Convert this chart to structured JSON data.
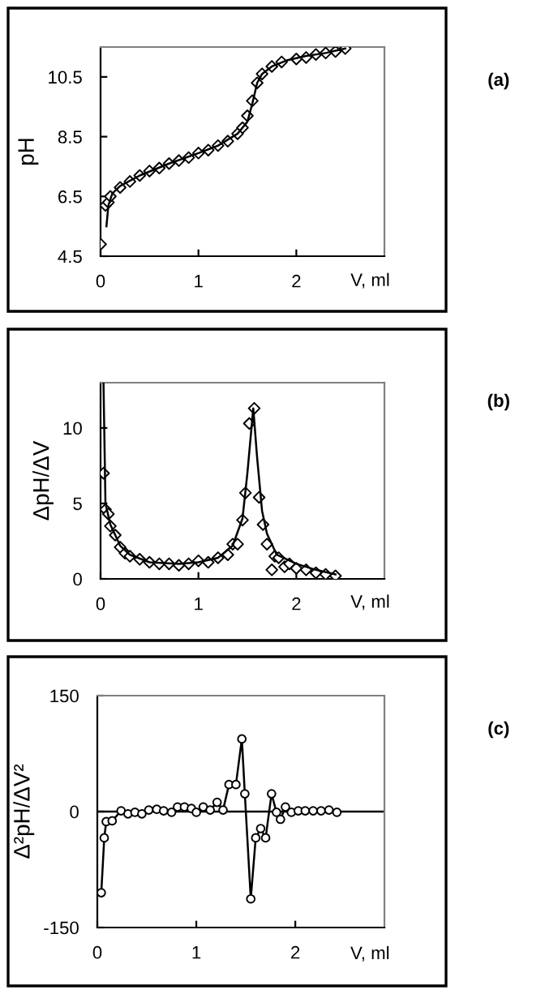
{
  "chart_data": [
    {
      "type": "scatter",
      "ylabel": "pH",
      "xlabel": "V, ml",
      "annotations": [
        "(a)"
      ],
      "xlim": [
        0,
        2.9
      ],
      "xticks": [
        0,
        1,
        2
      ],
      "ylim": [
        4.5,
        11.5
      ],
      "yticks": [
        4.5,
        6.5,
        8.5,
        10.5
      ],
      "grid": false,
      "legend": false,
      "series": [
        {
          "marker": "diamond",
          "color": "#000000",
          "x": [
            0,
            0.05,
            0.08,
            0.1,
            0.2,
            0.3,
            0.4,
            0.5,
            0.6,
            0.7,
            0.8,
            0.9,
            1.0,
            1.1,
            1.2,
            1.3,
            1.4,
            1.45,
            1.5,
            1.55,
            1.6,
            1.65,
            1.75,
            1.85,
            2.0,
            2.1,
            2.2,
            2.3,
            2.4,
            2.5
          ],
          "values": [
            4.9,
            6.2,
            6.3,
            6.5,
            6.8,
            7.0,
            7.2,
            7.35,
            7.45,
            7.6,
            7.7,
            7.8,
            7.95,
            8.05,
            8.2,
            8.35,
            8.6,
            8.8,
            9.2,
            9.7,
            10.3,
            10.6,
            10.85,
            11.0,
            11.1,
            11.15,
            11.25,
            11.3,
            11.35,
            11.45
          ]
        },
        {
          "type": "line",
          "marker": "none",
          "color": "#000000",
          "x": [
            0.06,
            0.08,
            0.12,
            0.2,
            0.4,
            0.7,
            1.0,
            1.2,
            1.4,
            1.5,
            1.55,
            1.6,
            1.65,
            1.75,
            1.9,
            2.1,
            2.3,
            2.5
          ],
          "values": [
            5.5,
            6.2,
            6.6,
            6.85,
            7.2,
            7.6,
            7.95,
            8.2,
            8.6,
            9.0,
            9.6,
            10.3,
            10.6,
            10.85,
            11.05,
            11.2,
            11.3,
            11.45
          ]
        }
      ]
    },
    {
      "type": "scatter",
      "ylabel": "ΔpH/ΔV",
      "xlabel": "V, ml",
      "annotations": [
        "(b)"
      ],
      "xlim": [
        0,
        2.9
      ],
      "xticks": [
        0,
        1,
        2
      ],
      "ylim": [
        0,
        13
      ],
      "yticks": [
        0,
        5,
        10
      ],
      "grid": false,
      "legend": false,
      "series": [
        {
          "marker": "diamond",
          "color": "#000000",
          "x": [
            0.03,
            0.05,
            0.08,
            0.1,
            0.15,
            0.2,
            0.25,
            0.3,
            0.4,
            0.5,
            0.6,
            0.7,
            0.8,
            0.9,
            1.0,
            1.1,
            1.2,
            1.3,
            1.35,
            1.4,
            1.45,
            1.48,
            1.52,
            1.57,
            1.62,
            1.66,
            1.7,
            1.75,
            1.78,
            1.82,
            1.88,
            1.93,
            2.0,
            2.1,
            2.2,
            2.3,
            2.4
          ],
          "values": [
            7.0,
            4.6,
            4.3,
            3.5,
            2.9,
            2.1,
            1.7,
            1.5,
            1.3,
            1.1,
            1.0,
            1.0,
            0.9,
            1.0,
            1.2,
            1.1,
            1.4,
            1.6,
            2.3,
            2.3,
            3.9,
            5.7,
            10.3,
            11.3,
            5.4,
            3.6,
            2.3,
            0.6,
            1.5,
            1.4,
            0.8,
            1.0,
            0.7,
            0.6,
            0.4,
            0.3,
            0.2
          ]
        },
        {
          "type": "line",
          "marker": "none",
          "color": "#000000",
          "x": [
            0.03,
            0.05,
            0.1,
            0.2,
            0.3,
            0.5,
            0.8,
            1.0,
            1.2,
            1.35,
            1.45,
            1.5,
            1.56,
            1.6,
            1.65,
            1.7,
            1.8,
            2.0,
            2.2,
            2.4
          ],
          "values": [
            13,
            5,
            3.6,
            2.2,
            1.6,
            1.1,
            1.0,
            1.1,
            1.4,
            2.2,
            4.0,
            7,
            11.3,
            8,
            4.5,
            3,
            1.6,
            1.0,
            0.6,
            0.3
          ]
        }
      ]
    },
    {
      "type": "line",
      "ylabel": "Δ²pH/ΔV²",
      "xlabel": "V, ml",
      "annotations": [
        "(c)"
      ],
      "xlim": [
        0,
        2.9
      ],
      "xticks": [
        0,
        1,
        2
      ],
      "ylim": [
        -150,
        150
      ],
      "yticks": [
        -150,
        0,
        150
      ],
      "grid": false,
      "legend": false,
      "ref_lines": [
        {
          "axis": "y",
          "value": 0,
          "label": null,
          "color": "#000000"
        }
      ],
      "series": [
        {
          "marker": "circle",
          "color": "#000000",
          "x": [
            0.04,
            0.07,
            0.09,
            0.15,
            0.24,
            0.31,
            0.38,
            0.45,
            0.52,
            0.6,
            0.67,
            0.75,
            0.81,
            0.88,
            0.95,
            1.0,
            1.07,
            1.14,
            1.21,
            1.27,
            1.33,
            1.4,
            1.46,
            1.49,
            1.55,
            1.6,
            1.65,
            1.7,
            1.76,
            1.81,
            1.85,
            1.9,
            1.96,
            2.03,
            2.1,
            2.18,
            2.26,
            2.34,
            2.42
          ],
          "values": [
            -105,
            -34,
            -13,
            -12,
            1,
            -3,
            -1,
            -3,
            2,
            3,
            1,
            -1,
            6,
            6,
            4,
            -1,
            6,
            2,
            12,
            2,
            35,
            35,
            94,
            23,
            -113,
            -34,
            -22,
            -34,
            23,
            -1,
            -10,
            6,
            -1,
            1,
            1,
            1,
            1,
            2,
            -1
          ]
        }
      ]
    }
  ]
}
